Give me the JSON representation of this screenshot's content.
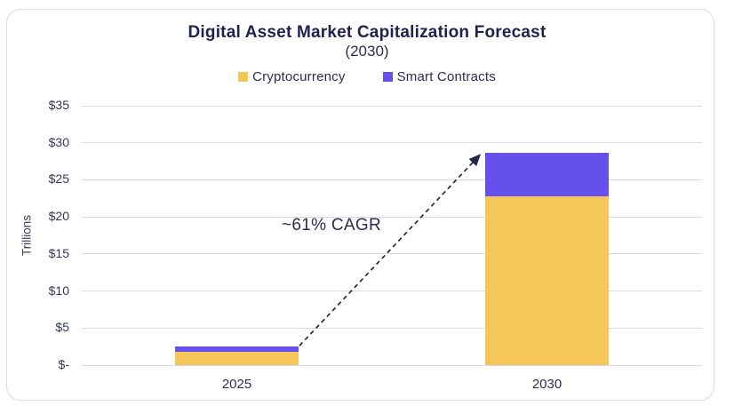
{
  "chart_data": {
    "type": "bar",
    "variant": "stacked-vertical",
    "title": "Digital Asset Market Capitalization Forecast",
    "subtitle": "(2030)",
    "ylabel": "Trillions",
    "xlabel": "",
    "categories": [
      "2025",
      "2030"
    ],
    "series": [
      {
        "name": "Cryptocurrency",
        "color": "#f5c65a",
        "values": [
          1.8,
          22.8
        ]
      },
      {
        "name": "Smart Contracts",
        "color": "#6550eb",
        "values": [
          0.7,
          5.8
        ]
      }
    ],
    "ylim": [
      0,
      35
    ],
    "ytick_step": 5,
    "ytick_labels": [
      "$-",
      "$5",
      "$10",
      "$15",
      "$20",
      "$25",
      "$30",
      "$35"
    ],
    "grid": true,
    "legend_position": "top-center",
    "annotation": {
      "text": "~61% CAGR",
      "arrow_style": "dashed",
      "arrow_from": "top of 2025 bar",
      "arrow_to": "top of 2030 bar",
      "arrow_color": "#252849"
    }
  },
  "frame": {
    "border_color": "#dcdce8",
    "background_color": "#ffffff",
    "gridline_color": "#d9dbec",
    "title_color": "#1f2150"
  }
}
